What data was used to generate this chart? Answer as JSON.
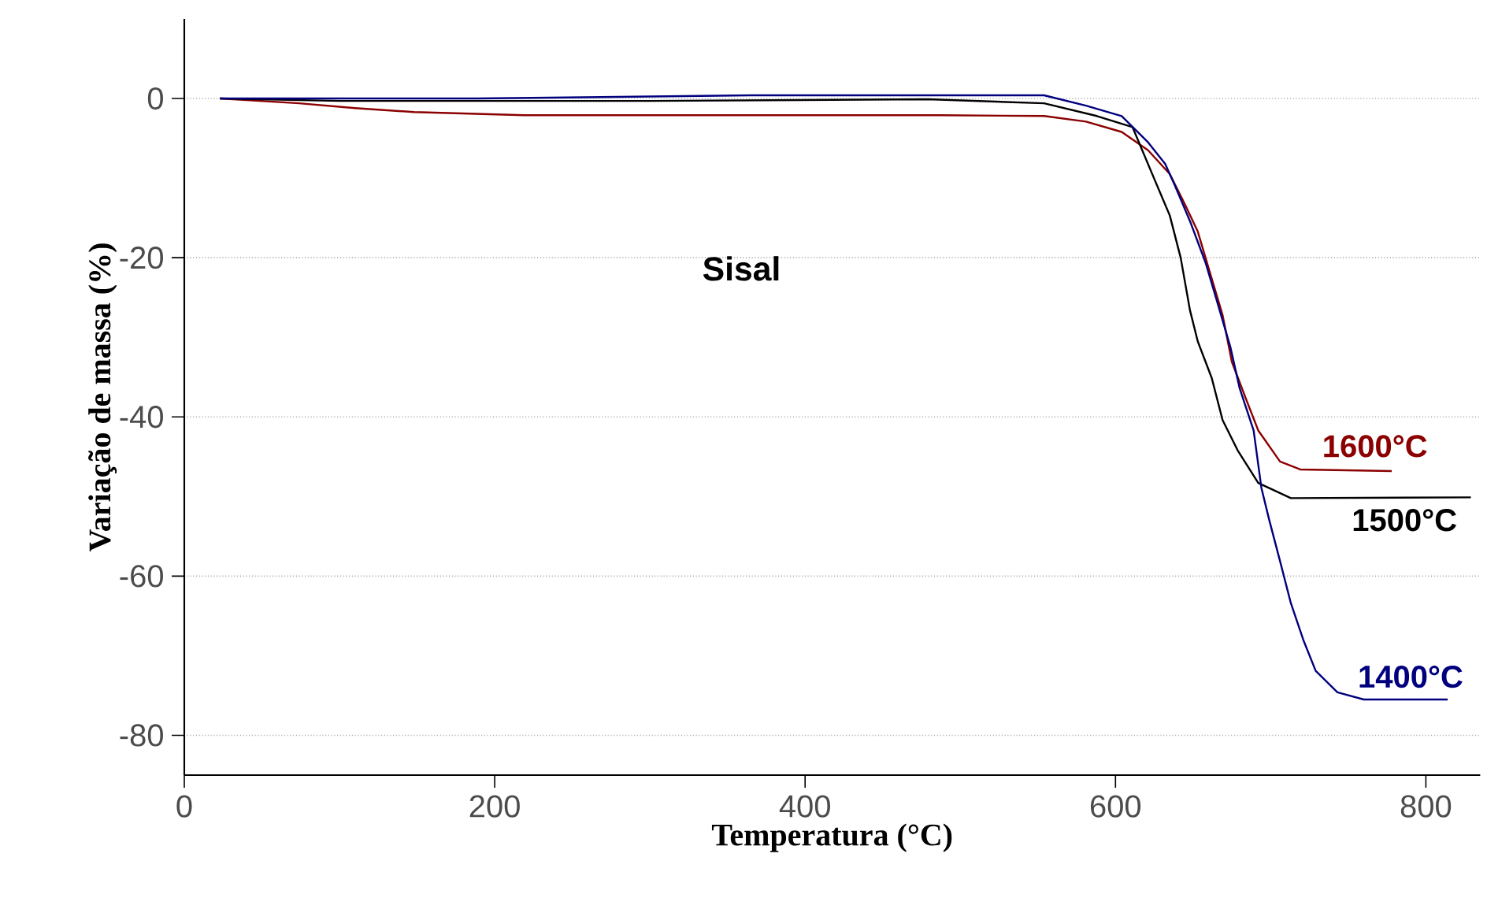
{
  "chart_data": {
    "type": "line",
    "xlabel": "Temperatura  (°C)",
    "ylabel": "Variação de massa (%)",
    "annotations": [
      "Sisal"
    ],
    "xlim": [
      0,
      835
    ],
    "ylim": [
      -85,
      10
    ],
    "xticks": [
      0,
      200,
      400,
      600,
      800
    ],
    "yticks": [
      -80,
      -60,
      -40,
      -20,
      0
    ],
    "grid": "y",
    "line_style": "solid",
    "marker": "none",
    "series": [
      {
        "name": "1600°C",
        "color": "#8b0000",
        "x": [
          23,
          74,
          110,
          148,
          219,
          487,
          554,
          581,
          604,
          621,
          635,
          645,
          653,
          660,
          669,
          675,
          684,
          692,
          706,
          719,
          778
        ],
        "values": [
          0,
          -0.6,
          -1.2,
          -1.7,
          -2.1,
          -2.1,
          -2.2,
          -2.9,
          -4.2,
          -6.5,
          -9.5,
          -13.4,
          -16.7,
          -21.3,
          -27.2,
          -33.1,
          -37.7,
          -41.7,
          -45.6,
          -46.6,
          -46.8
        ]
      },
      {
        "name": "1500°C",
        "color": "#000000",
        "x": [
          23,
          100,
          300,
          479,
          554,
          588,
          611,
          625,
          635,
          642,
          648,
          653,
          662,
          669,
          679,
          692,
          713,
          829
        ],
        "values": [
          0,
          -0.3,
          -0.3,
          -0.1,
          -0.6,
          -2.2,
          -3.6,
          -10.1,
          -14.7,
          -20.0,
          -26.6,
          -30.5,
          -35.1,
          -40.4,
          -44.3,
          -48.3,
          -50.2,
          -50.1
        ]
      },
      {
        "name": "1400°C",
        "color": "#00007f",
        "x": [
          23,
          189,
          365,
          479,
          554,
          581,
          604,
          621,
          632,
          638,
          648,
          658,
          665,
          674,
          680,
          689,
          694,
          699,
          706,
          713,
          721,
          729,
          743,
          760,
          814
        ],
        "values": [
          0,
          0,
          0.4,
          0.4,
          0.4,
          -0.9,
          -2.2,
          -5.5,
          -8.2,
          -10.8,
          -15.4,
          -20.6,
          -25.2,
          -31.2,
          -36.4,
          -41.7,
          -48.9,
          -52.9,
          -58.1,
          -63.4,
          -68.0,
          -71.9,
          -74.6,
          -75.5,
          -75.5
        ]
      }
    ]
  }
}
